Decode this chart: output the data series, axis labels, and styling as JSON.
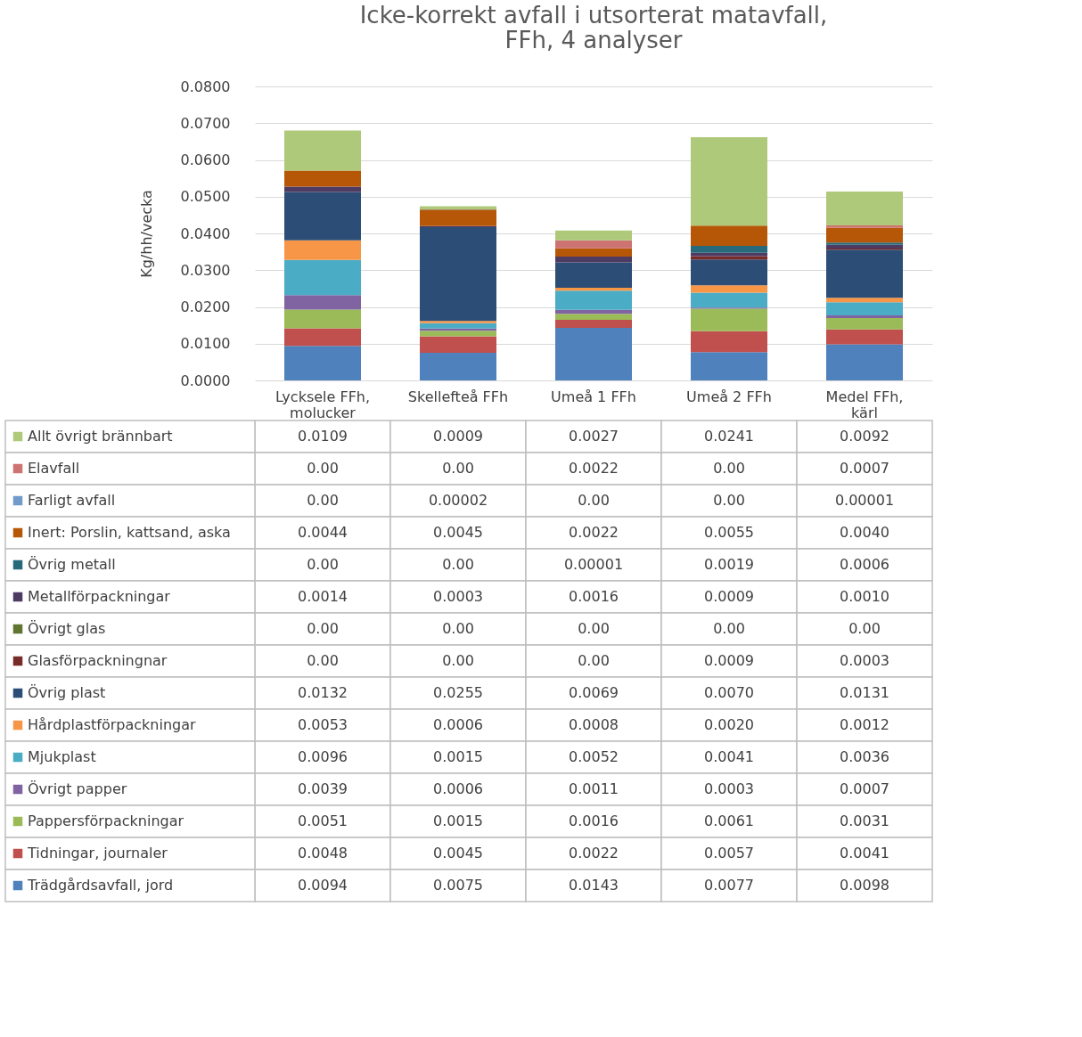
{
  "chart_data": {
    "type": "bar",
    "stacked": true,
    "title": "Icke-korrekt avfall i utsorterat matavfall, FFh, 4 analyser",
    "ylabel": "Kg/hh/vecka",
    "categories": [
      "Lycksele FFh, molucker",
      "Skellefteå FFh",
      "Umeå 1 FFh",
      "Umeå 2 FFh",
      "Medel FFh, kärl"
    ],
    "ylim": [
      0,
      0.08
    ],
    "yticks": [
      {
        "value": 0,
        "label": "0.0000"
      },
      {
        "value": 0.01,
        "label": "0.0100"
      },
      {
        "value": 0.02,
        "label": "0.0200"
      },
      {
        "value": 0.03,
        "label": "0.0300"
      },
      {
        "value": 0.04,
        "label": "0.0400"
      },
      {
        "value": 0.05,
        "label": "0.0500"
      },
      {
        "value": 0.06,
        "label": "0.0600"
      },
      {
        "value": 0.07,
        "label": "0.0700"
      },
      {
        "value": 0.08,
        "label": "0.0800"
      }
    ],
    "grid": "y",
    "legend": "bottom",
    "series": [
      {
        "name": "Trädgårdsavfall, jord",
        "color": "#4f81bd",
        "values": [
          0.0094,
          0.0075,
          0.0143,
          0.0077,
          0.0098
        ],
        "value_labels": [
          "0.0094",
          "0.0075",
          "0.0143",
          "0.0077",
          "0.0098"
        ]
      },
      {
        "name": "Tidningar, journaler",
        "color": "#c0504d",
        "values": [
          0.0048,
          0.0045,
          0.0022,
          0.0057,
          0.0041
        ],
        "value_labels": [
          "0.0048",
          "0.0045",
          "0.0022",
          "0.0057",
          "0.0041"
        ]
      },
      {
        "name": "Pappersförpackningar",
        "color": "#9bbb59",
        "values": [
          0.0051,
          0.0015,
          0.0016,
          0.0061,
          0.0031
        ],
        "value_labels": [
          "0.0051",
          "0.0015",
          "0.0016",
          "0.0061",
          "0.0031"
        ]
      },
      {
        "name": "Övrigt papper",
        "color": "#8064a2",
        "values": [
          0.0039,
          0.0006,
          0.0011,
          0.0003,
          0.0007
        ],
        "value_labels": [
          "0.0039",
          "0.0006",
          "0.0011",
          "0.0003",
          "0.0007"
        ]
      },
      {
        "name": "Mjukplast",
        "color": "#4bacc6",
        "values": [
          0.0096,
          0.0015,
          0.0052,
          0.0041,
          0.0036
        ],
        "value_labels": [
          "0.0096",
          "0.0015",
          "0.0052",
          "0.0041",
          "0.0036"
        ]
      },
      {
        "name": "Hårdplastförpackningar",
        "color": "#f79646",
        "values": [
          0.0053,
          0.0006,
          0.0008,
          0.002,
          0.0012
        ],
        "value_labels": [
          "0.0053",
          "0.0006",
          "0.0008",
          "0.0020",
          "0.0012"
        ]
      },
      {
        "name": "Övrig plast",
        "color": "#2c4d75",
        "values": [
          0.0132,
          0.0255,
          0.0069,
          0.007,
          0.0131
        ],
        "value_labels": [
          "0.0132",
          "0.0255",
          "0.0069",
          "0.0070",
          "0.0131"
        ]
      },
      {
        "name": "Glasförpackningnar",
        "color": "#772c2a",
        "values": [
          0,
          0,
          0,
          0.0009,
          0.0003
        ],
        "value_labels": [
          "0.00",
          "0.00",
          "0.00",
          "0.0009",
          "0.0003"
        ]
      },
      {
        "name": "Övrigt glas",
        "color": "#5f7530",
        "values": [
          0,
          0,
          0,
          0,
          0
        ],
        "value_labels": [
          "0.00",
          "0.00",
          "0.00",
          "0.00",
          "0.00"
        ]
      },
      {
        "name": "Metallförpackningar",
        "color": "#4d3b62",
        "values": [
          0.0014,
          0.0003,
          0.0016,
          0.0009,
          0.001
        ],
        "value_labels": [
          "0.0014",
          "0.0003",
          "0.0016",
          "0.0009",
          "0.0010"
        ]
      },
      {
        "name": "Övrig metall",
        "color": "#276a7c",
        "values": [
          0,
          0,
          1e-05,
          0.0019,
          0.0006
        ],
        "value_labels": [
          "0.00",
          "0.00",
          "0.00001",
          "0.0019",
          "0.0006"
        ]
      },
      {
        "name": "Inert: Porslin, kattsand, aska",
        "color": "#b65708",
        "values": [
          0.0044,
          0.0045,
          0.0022,
          0.0055,
          0.004
        ],
        "value_labels": [
          "0.0044",
          "0.0045",
          "0.0022",
          "0.0055",
          "0.0040"
        ]
      },
      {
        "name": "Farligt avfall",
        "color": "#729aca",
        "values": [
          0,
          2e-05,
          0,
          0,
          1e-05
        ],
        "value_labels": [
          "0.00",
          "0.00002",
          "0.00",
          "0.00",
          "0.00001"
        ]
      },
      {
        "name": "Elavfall",
        "color": "#cd7371",
        "values": [
          0,
          0,
          0.0022,
          0,
          0.0007
        ],
        "value_labels": [
          "0.00",
          "0.00",
          "0.0022",
          "0.00",
          "0.0007"
        ]
      },
      {
        "name": "Allt övrigt brännbart",
        "color": "#afc97a",
        "values": [
          0.0109,
          0.0009,
          0.0027,
          0.0241,
          0.0092
        ],
        "value_labels": [
          "0.0109",
          "0.0009",
          "0.0027",
          "0.0241",
          "0.0092"
        ]
      }
    ]
  }
}
